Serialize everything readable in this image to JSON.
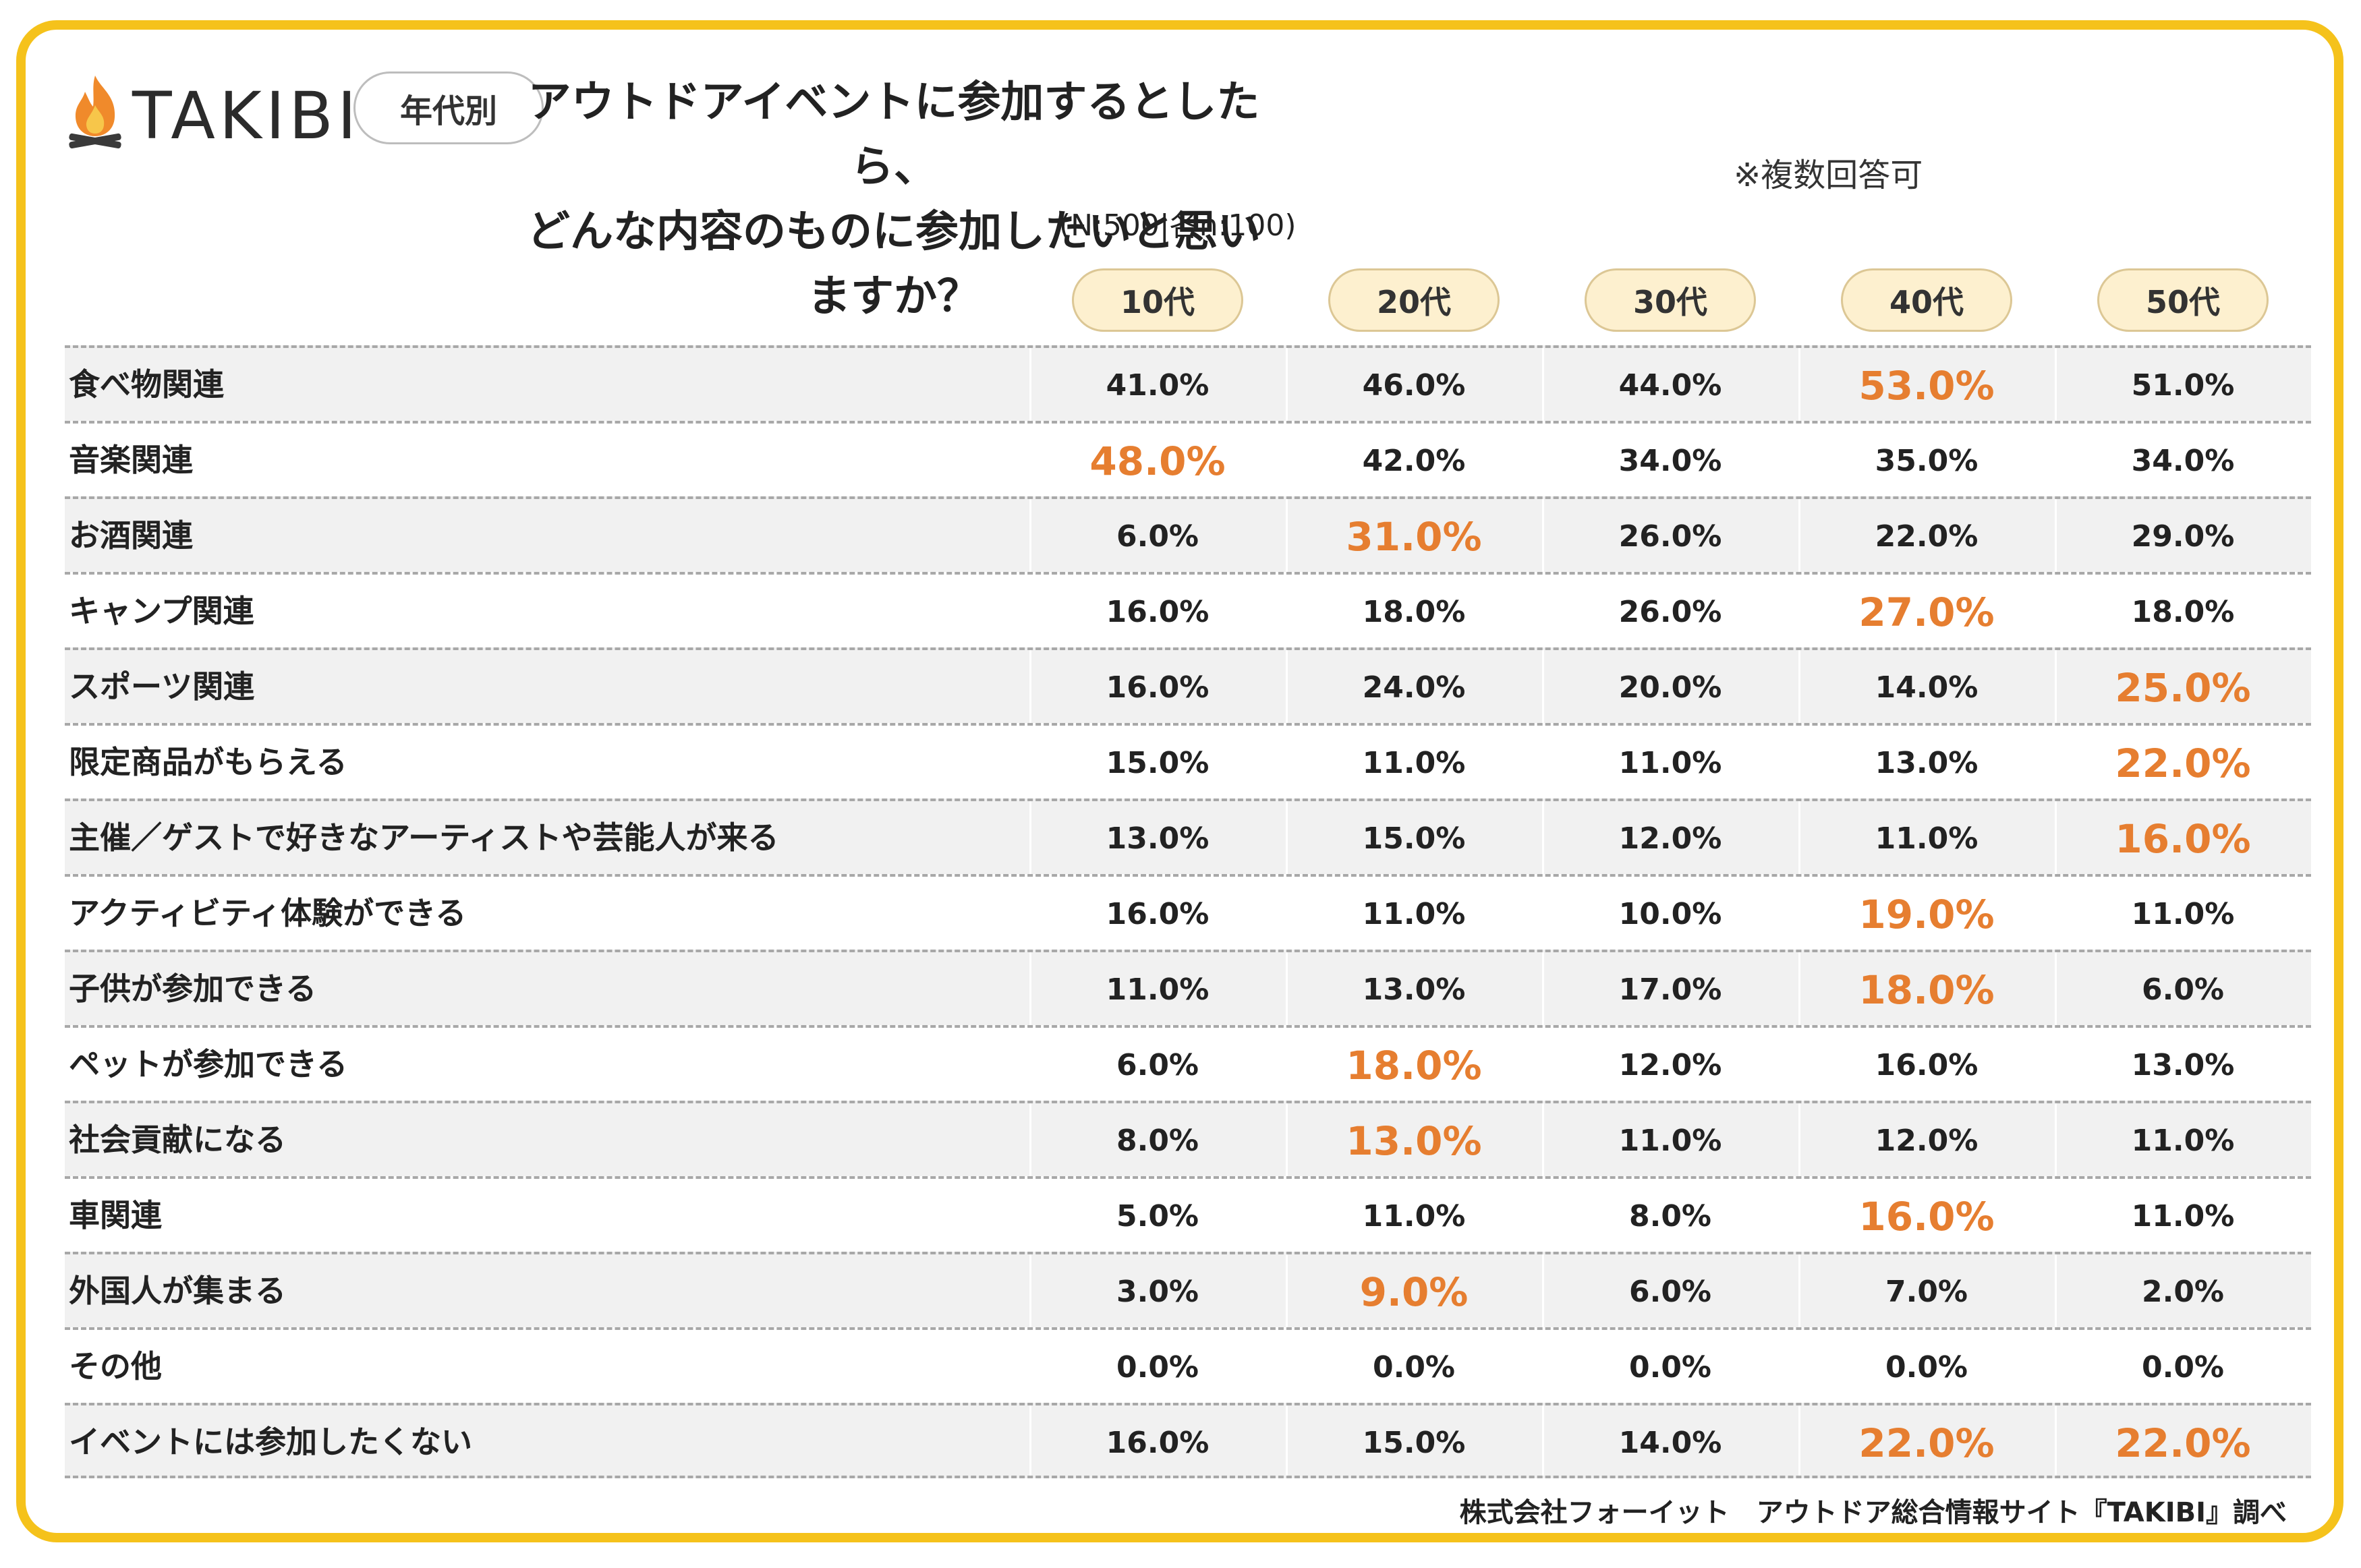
{
  "brand": {
    "name": "TAKIBI",
    "icon": "campfire-icon"
  },
  "badge": "年代別",
  "title_line1": "アウトドアイベントに参加するとしたら、",
  "title_line2": "どんな内容のものに参加したいと思いますか？",
  "note": "※複数回答可",
  "sample": "(N:500|各n:100)",
  "source": "株式会社フォーイット　アウトドア総合情報サイト『TAKIBI』調べ",
  "colors": {
    "frame": "#f5c21b",
    "highlight": "#e67e30",
    "pill": "#fdf0cf"
  },
  "chart_data": {
    "type": "table",
    "columns": [
      "10代",
      "20代",
      "30代",
      "40代",
      "50代"
    ],
    "rows": [
      {
        "label": "食べ物関連",
        "values": [
          "41.0%",
          "46.0%",
          "44.0%",
          "53.0%",
          "51.0%"
        ],
        "highlight": [
          3
        ]
      },
      {
        "label": "音楽関連",
        "values": [
          "48.0%",
          "42.0%",
          "34.0%",
          "35.0%",
          "34.0%"
        ],
        "highlight": [
          0
        ]
      },
      {
        "label": "お酒関連",
        "values": [
          "6.0%",
          "31.0%",
          "26.0%",
          "22.0%",
          "29.0%"
        ],
        "highlight": [
          1
        ]
      },
      {
        "label": "キャンプ関連",
        "values": [
          "16.0%",
          "18.0%",
          "26.0%",
          "27.0%",
          "18.0%"
        ],
        "highlight": [
          3
        ]
      },
      {
        "label": "スポーツ関連",
        "values": [
          "16.0%",
          "24.0%",
          "20.0%",
          "14.0%",
          "25.0%"
        ],
        "highlight": [
          4
        ]
      },
      {
        "label": "限定商品がもらえる",
        "values": [
          "15.0%",
          "11.0%",
          "11.0%",
          "13.0%",
          "22.0%"
        ],
        "highlight": [
          4
        ]
      },
      {
        "label": "主催／ゲストで好きなアーティストや芸能人が来る",
        "values": [
          "13.0%",
          "15.0%",
          "12.0%",
          "11.0%",
          "16.0%"
        ],
        "highlight": [
          4
        ]
      },
      {
        "label": "アクティビティ体験ができる",
        "values": [
          "16.0%",
          "11.0%",
          "10.0%",
          "19.0%",
          "11.0%"
        ],
        "highlight": [
          3
        ]
      },
      {
        "label": "子供が参加できる",
        "values": [
          "11.0%",
          "13.0%",
          "17.0%",
          "18.0%",
          "6.0%"
        ],
        "highlight": [
          3
        ]
      },
      {
        "label": "ペットが参加できる",
        "values": [
          "6.0%",
          "18.0%",
          "12.0%",
          "16.0%",
          "13.0%"
        ],
        "highlight": [
          1
        ]
      },
      {
        "label": "社会貢献になる",
        "values": [
          "8.0%",
          "13.0%",
          "11.0%",
          "12.0%",
          "11.0%"
        ],
        "highlight": [
          1
        ]
      },
      {
        "label": "車関連",
        "values": [
          "5.0%",
          "11.0%",
          "8.0%",
          "16.0%",
          "11.0%"
        ],
        "highlight": [
          3
        ]
      },
      {
        "label": "外国人が集まる",
        "values": [
          "3.0%",
          "9.0%",
          "6.0%",
          "7.0%",
          "2.0%"
        ],
        "highlight": [
          1
        ]
      },
      {
        "label": "その他",
        "values": [
          "0.0%",
          "0.0%",
          "0.0%",
          "0.0%",
          "0.0%"
        ],
        "highlight": []
      },
      {
        "label": "イベントには参加したくない",
        "values": [
          "16.0%",
          "15.0%",
          "14.0%",
          "22.0%",
          "22.0%"
        ],
        "highlight": [
          3,
          4
        ]
      }
    ]
  }
}
